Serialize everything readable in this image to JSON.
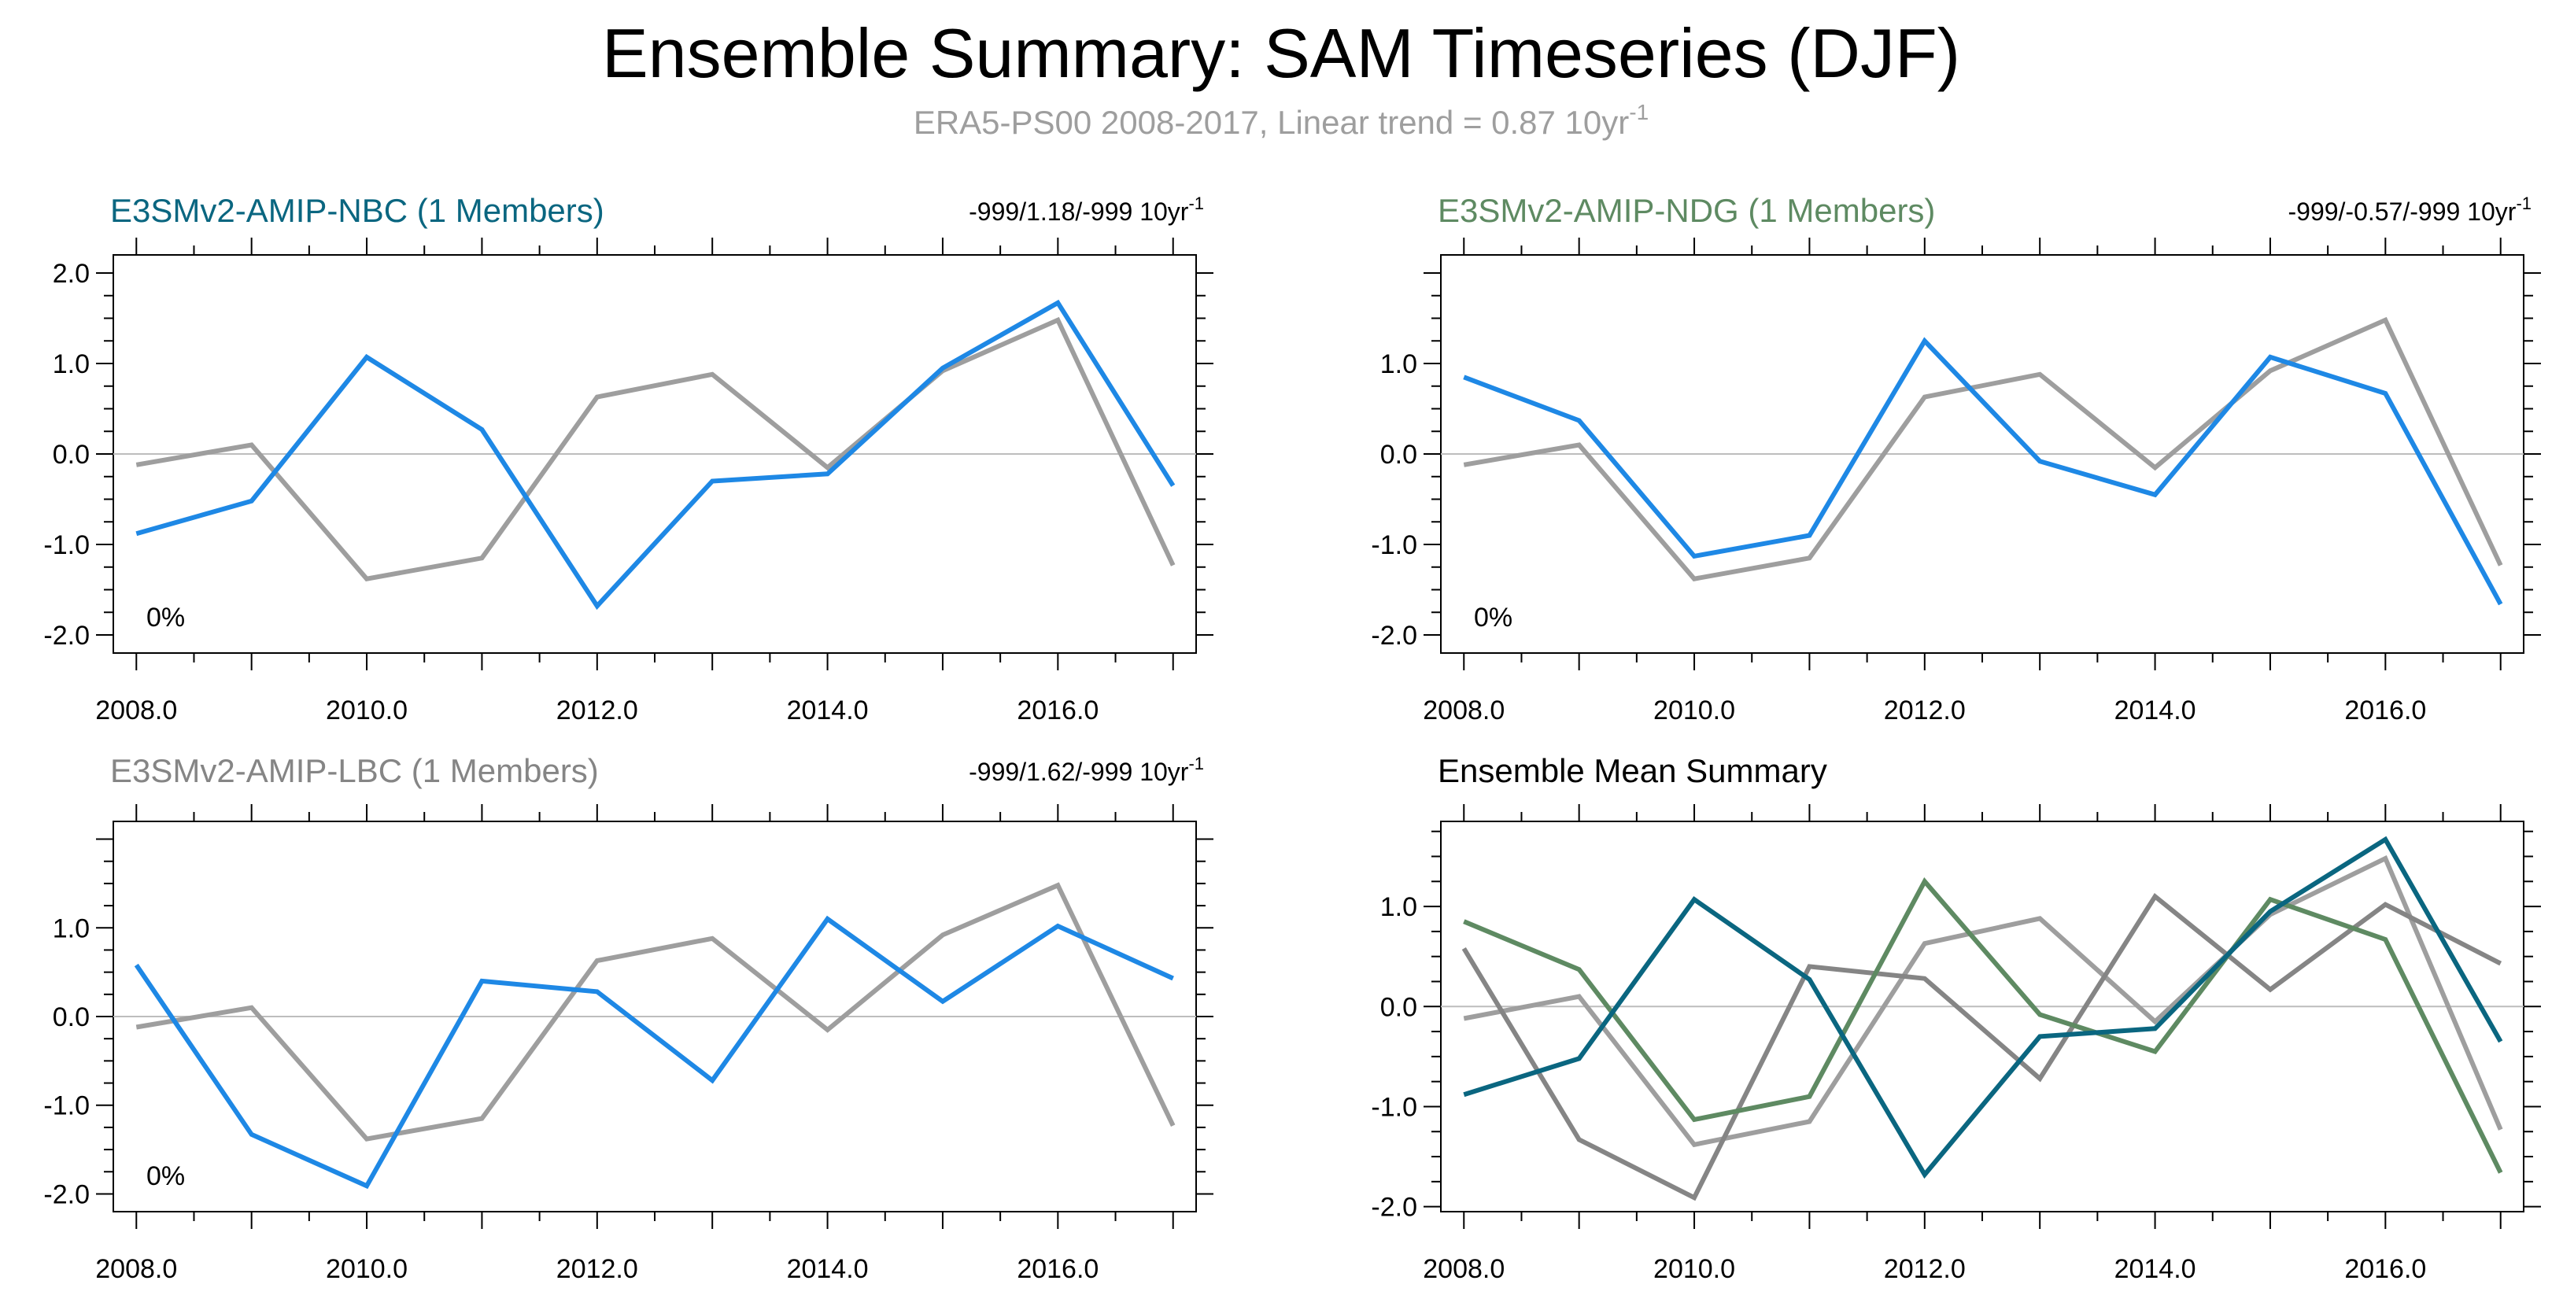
{
  "page": {
    "title": "Ensemble Summary: SAM Timeseries (DJF)",
    "subtitle_main": "ERA5-PS00 2008-2017, Linear trend = 0.87 10yr",
    "subtitle_sup": "-1"
  },
  "colors": {
    "obs": "#9e9e9e",
    "model_line": "#1e88e5",
    "nbc": "#0a6680",
    "ndg": "#5e8a62",
    "lbc": "#858585",
    "title": "#000000",
    "subtitle": "#9e9e9e",
    "axis": "#000000",
    "zero_line": "#bdbdbd"
  },
  "chart_data": [
    {
      "type": "line",
      "panel": "NBC",
      "title": "E3SMv2-AMIP-NBC (1 Members)",
      "title_color": "#0a6680",
      "trend_label": "-999/1.18/-999 10yr",
      "trend_sup": "-1",
      "percent_label": "0%",
      "x": [
        2008,
        2009,
        2010,
        2011,
        2012,
        2013,
        2014,
        2015,
        2016,
        2017
      ],
      "xlim": [
        2007.8,
        2017.2
      ],
      "ylim": [
        -2.2,
        2.2
      ],
      "yticks": [
        -2.0,
        -1.0,
        0.0,
        1.0,
        2.0
      ],
      "ytick_labels": [
        "-2.0",
        "-1.0",
        "0.0",
        "1.0",
        "2.0"
      ],
      "xticks": [
        2008,
        2010,
        2012,
        2014,
        2016
      ],
      "xtick_labels": [
        "2008.0",
        "2010.0",
        "2012.0",
        "2014.0",
        "2016.0"
      ],
      "series": [
        {
          "name": "ERA5-PS00",
          "color": "#9e9e9e",
          "values": [
            -0.12,
            0.1,
            -1.38,
            -1.15,
            0.63,
            0.88,
            -0.15,
            0.92,
            1.48,
            -1.23
          ]
        },
        {
          "name": "E3SMv2-AMIP-NBC",
          "color": "#1e88e5",
          "values": [
            -0.88,
            -0.52,
            1.07,
            0.27,
            -1.68,
            -0.3,
            -0.22,
            0.95,
            1.67,
            -0.35
          ]
        }
      ]
    },
    {
      "type": "line",
      "panel": "NDG",
      "title": "E3SMv2-AMIP-NDG (1 Members)",
      "title_color": "#5e8a62",
      "trend_label": "-999/-0.57/-999 10yr",
      "trend_sup": "-1",
      "percent_label": "0%",
      "x": [
        2008,
        2009,
        2010,
        2011,
        2012,
        2013,
        2014,
        2015,
        2016,
        2017
      ],
      "xlim": [
        2007.8,
        2017.2
      ],
      "ylim": [
        -2.2,
        2.2
      ],
      "yticks": [
        -2.0,
        -1.0,
        0.0,
        1.0
      ],
      "ytick_labels": [
        "-2.0",
        "-1.0",
        "0.0",
        "1.0"
      ],
      "xticks": [
        2008,
        2010,
        2012,
        2014,
        2016
      ],
      "xtick_labels": [
        "2008.0",
        "2010.0",
        "2012.0",
        "2014.0",
        "2016.0"
      ],
      "series": [
        {
          "name": "ERA5-PS00",
          "color": "#9e9e9e",
          "values": [
            -0.12,
            0.1,
            -1.38,
            -1.15,
            0.63,
            0.88,
            -0.15,
            0.92,
            1.48,
            -1.23
          ]
        },
        {
          "name": "E3SMv2-AMIP-NDG",
          "color": "#1e88e5",
          "values": [
            0.85,
            0.37,
            -1.13,
            -0.9,
            1.25,
            -0.08,
            -0.45,
            1.07,
            0.67,
            -1.66
          ]
        }
      ]
    },
    {
      "type": "line",
      "panel": "LBC",
      "title": "E3SMv2-AMIP-LBC (1 Members)",
      "title_color": "#858585",
      "trend_label": "-999/1.62/-999 10yr",
      "trend_sup": "-1",
      "percent_label": "0%",
      "x": [
        2008,
        2009,
        2010,
        2011,
        2012,
        2013,
        2014,
        2015,
        2016,
        2017
      ],
      "xlim": [
        2007.8,
        2017.2
      ],
      "ylim": [
        -2.2,
        2.2
      ],
      "yticks": [
        -2.0,
        -1.0,
        0.0,
        1.0
      ],
      "ytick_labels": [
        "-2.0",
        "-1.0",
        "0.0",
        "1.0"
      ],
      "xticks": [
        2008,
        2010,
        2012,
        2014,
        2016
      ],
      "xtick_labels": [
        "2008.0",
        "2010.0",
        "2012.0",
        "2014.0",
        "2016.0"
      ],
      "series": [
        {
          "name": "ERA5-PS00",
          "color": "#9e9e9e",
          "values": [
            -0.12,
            0.1,
            -1.38,
            -1.15,
            0.63,
            0.88,
            -0.15,
            0.92,
            1.48,
            -1.23
          ]
        },
        {
          "name": "E3SMv2-AMIP-LBC",
          "color": "#1e88e5",
          "values": [
            0.58,
            -1.33,
            -1.91,
            0.4,
            0.28,
            -0.72,
            1.1,
            0.17,
            1.02,
            0.43
          ]
        }
      ]
    },
    {
      "type": "line",
      "panel": "MEAN",
      "title": "Ensemble Mean Summary",
      "title_color": "#000000",
      "trend_label": "",
      "trend_sup": "",
      "percent_label": "",
      "x": [
        2008,
        2009,
        2010,
        2011,
        2012,
        2013,
        2014,
        2015,
        2016,
        2017
      ],
      "xlim": [
        2007.8,
        2017.2
      ],
      "ylim": [
        -2.05,
        1.85
      ],
      "yticks": [
        -2.0,
        -1.0,
        0.0,
        1.0
      ],
      "ytick_labels": [
        "-2.0",
        "-1.0",
        "0.0",
        "1.0"
      ],
      "xticks": [
        2008,
        2010,
        2012,
        2014,
        2016
      ],
      "xtick_labels": [
        "2008.0",
        "2010.0",
        "2012.0",
        "2014.0",
        "2016.0"
      ],
      "series": [
        {
          "name": "ERA5-PS00",
          "color": "#9e9e9e",
          "values": [
            -0.12,
            0.1,
            -1.38,
            -1.15,
            0.63,
            0.88,
            -0.15,
            0.92,
            1.48,
            -1.23
          ]
        },
        {
          "name": "E3SMv2-AMIP-LBC",
          "color": "#858585",
          "values": [
            0.58,
            -1.33,
            -1.91,
            0.4,
            0.28,
            -0.72,
            1.1,
            0.17,
            1.02,
            0.43
          ]
        },
        {
          "name": "E3SMv2-AMIP-NDG",
          "color": "#5e8a62",
          "values": [
            0.85,
            0.37,
            -1.13,
            -0.9,
            1.25,
            -0.08,
            -0.45,
            1.07,
            0.67,
            -1.66
          ]
        },
        {
          "name": "E3SMv2-AMIP-NBC",
          "color": "#0a6680",
          "values": [
            -0.88,
            -0.52,
            1.07,
            0.27,
            -1.68,
            -0.3,
            -0.22,
            0.95,
            1.67,
            -0.35
          ]
        }
      ]
    }
  ]
}
